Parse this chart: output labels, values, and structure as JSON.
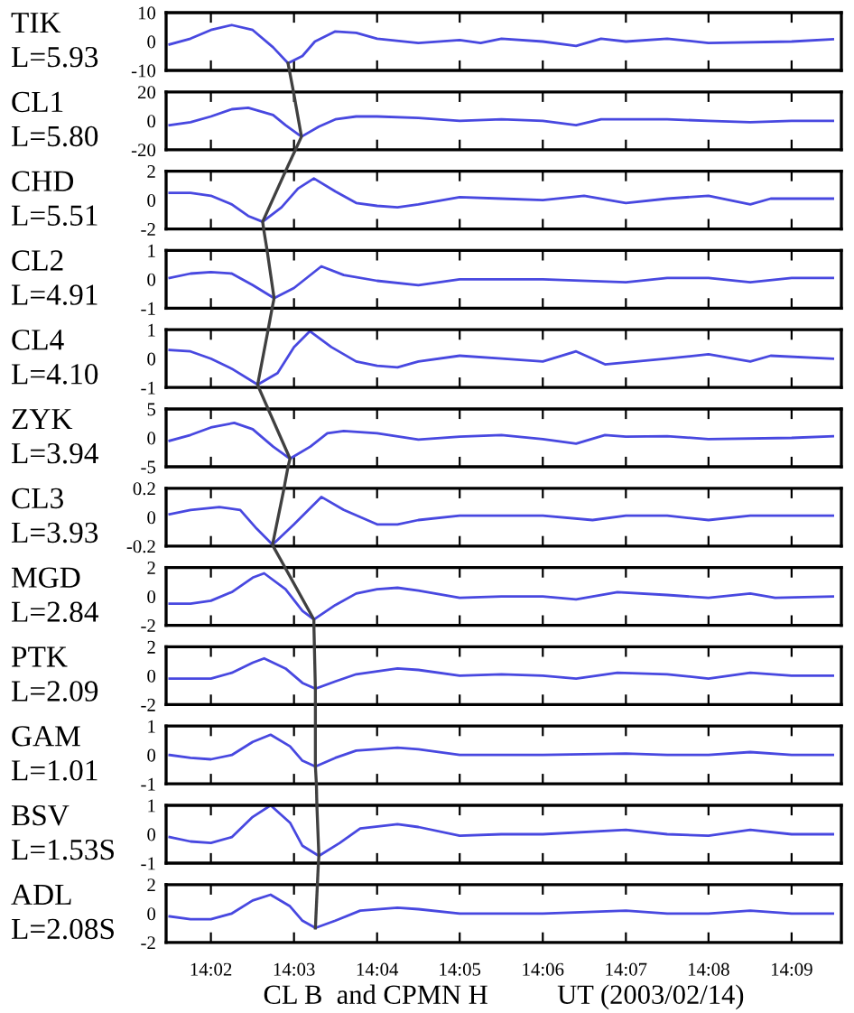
{
  "chart_data": [
    {
      "type": "line",
      "title": "TIK",
      "subtitle": "L=5.93",
      "color": "#4848e0",
      "xlim": [
        14.0243,
        14.16
      ],
      "ylim": [
        -10,
        10
      ],
      "yticks": [
        -10,
        0,
        10
      ],
      "tick_labels": "y",
      "xticks": [
        {
          "value": 14.0333,
          "label": null
        },
        {
          "value": 14.05,
          "label": null
        },
        {
          "value": 14.0667,
          "label": null
        },
        {
          "value": 14.0833,
          "label": null
        },
        {
          "value": 14.1,
          "label": null
        },
        {
          "value": 14.1167,
          "label": null
        },
        {
          "value": 14.1333,
          "label": null
        },
        {
          "value": 14.15,
          "label": null
        }
      ],
      "x": [
        14.025,
        14.0292,
        14.0333,
        14.0375,
        14.0417,
        14.0458,
        14.0488,
        14.0517,
        14.0542,
        14.0583,
        14.0625,
        14.0667,
        14.075,
        14.0833,
        14.0875,
        14.0917,
        14.1,
        14.1067,
        14.1117,
        14.1167,
        14.125,
        14.1333,
        14.15,
        14.1583
      ],
      "values": [
        -1,
        1,
        4,
        5.7,
        4,
        -2,
        -7.5,
        -5,
        0,
        3.5,
        3,
        1,
        -0.5,
        0.5,
        -0.5,
        1,
        0,
        -1.5,
        1,
        0,
        1,
        -0.5,
        0,
        0.8
      ]
    },
    {
      "type": "line",
      "title": "CL1",
      "subtitle": "L=5.80",
      "color": "#4848e0",
      "xlim": [
        14.0243,
        14.16
      ],
      "ylim": [
        -20,
        20
      ],
      "yticks": [
        -20,
        0,
        20
      ],
      "tick_labels": "y",
      "xticks": [
        {
          "value": 14.0333,
          "label": null
        },
        {
          "value": 14.05,
          "label": null
        },
        {
          "value": 14.0667,
          "label": null
        },
        {
          "value": 14.0833,
          "label": null
        },
        {
          "value": 14.1,
          "label": null
        },
        {
          "value": 14.1167,
          "label": null
        },
        {
          "value": 14.1333,
          "label": null
        },
        {
          "value": 14.15,
          "label": null
        }
      ],
      "x": [
        14.025,
        14.0292,
        14.0333,
        14.0375,
        14.0408,
        14.0458,
        14.0483,
        14.0515,
        14.055,
        14.0583,
        14.0625,
        14.0667,
        14.075,
        14.0833,
        14.0917,
        14.1,
        14.1067,
        14.1117,
        14.125,
        14.1333,
        14.1417,
        14.15,
        14.1583
      ],
      "values": [
        -3,
        -1,
        3,
        8,
        9,
        4,
        -3,
        -11,
        -4,
        1,
        3,
        3,
        2,
        0,
        1,
        0,
        -3,
        1,
        1,
        0,
        -1,
        0,
        0
      ],
      "series": [
        {
          "color": "#404040",
          "x": [
            14.0499,
            14.0515,
            14.0503
          ],
          "values": [
            20,
            -11,
            -20
          ]
        }
      ]
    },
    {
      "type": "line",
      "title": "CHD",
      "subtitle": "L=5.51",
      "color": "#4848e0",
      "xlim": [
        14.0243,
        14.16
      ],
      "ylim": [
        -2,
        2
      ],
      "yticks": [
        -2,
        0,
        2
      ],
      "tick_labels": "y",
      "xticks": [
        {
          "value": 14.0333,
          "label": null
        },
        {
          "value": 14.05,
          "label": null
        },
        {
          "value": 14.0667,
          "label": null
        },
        {
          "value": 14.0833,
          "label": null
        },
        {
          "value": 14.1,
          "label": null
        },
        {
          "value": 14.1167,
          "label": null
        },
        {
          "value": 14.1333,
          "label": null
        },
        {
          "value": 14.15,
          "label": null
        }
      ],
      "x": [
        14.025,
        14.0292,
        14.0333,
        14.0375,
        14.0408,
        14.0437,
        14.0475,
        14.0508,
        14.054,
        14.0583,
        14.0625,
        14.0667,
        14.0708,
        14.075,
        14.0833,
        14.0917,
        14.1,
        14.1083,
        14.1167,
        14.125,
        14.1333,
        14.1417,
        14.1458,
        14.1583
      ],
      "values": [
        0.5,
        0.5,
        0.3,
        -0.3,
        -1.1,
        -1.5,
        -0.5,
        0.8,
        1.5,
        0.6,
        -0.2,
        -0.4,
        -0.5,
        -0.3,
        0.2,
        0.1,
        0,
        0.3,
        -0.2,
        0.1,
        0.3,
        -0.3,
        0.1,
        0.1
      ],
      "series": [
        {
          "color": "#404040",
          "x": [
            14.0483,
            14.0437,
            14.0439
          ],
          "values": [
            2,
            -1.5,
            -2
          ]
        }
      ]
    },
    {
      "type": "line",
      "title": "CL2",
      "subtitle": "L=4.91",
      "color": "#4848e0",
      "xlim": [
        14.0243,
        14.16
      ],
      "ylim": [
        -1,
        1
      ],
      "yticks": [
        -1,
        0,
        1
      ],
      "tick_labels": "y",
      "xticks": [
        {
          "value": 14.0333,
          "label": null
        },
        {
          "value": 14.05,
          "label": null
        },
        {
          "value": 14.0667,
          "label": null
        },
        {
          "value": 14.0833,
          "label": null
        },
        {
          "value": 14.1,
          "label": null
        },
        {
          "value": 14.1167,
          "label": null
        },
        {
          "value": 14.1333,
          "label": null
        },
        {
          "value": 14.15,
          "label": null
        }
      ],
      "x": [
        14.025,
        14.0292,
        14.0333,
        14.0375,
        14.0417,
        14.046,
        14.05,
        14.0555,
        14.06,
        14.0667,
        14.075,
        14.0833,
        14.0917,
        14.1,
        14.1167,
        14.125,
        14.1333,
        14.1417,
        14.15,
        14.1583
      ],
      "values": [
        0.05,
        0.2,
        0.25,
        0.2,
        -0.2,
        -0.65,
        -0.3,
        0.45,
        0.15,
        -0.05,
        -0.2,
        0,
        0,
        0,
        -0.1,
        0.05,
        0.05,
        -0.1,
        0.05,
        0.05
      ],
      "series": [
        {
          "color": "#404040",
          "x": [
            14.0446,
            14.046,
            14.0456
          ],
          "values": [
            1,
            -0.65,
            -1
          ]
        }
      ]
    },
    {
      "type": "line",
      "title": "CL4",
      "subtitle": "L=4.10",
      "color": "#4848e0",
      "xlim": [
        14.0243,
        14.16
      ],
      "ylim": [
        -1,
        1
      ],
      "yticks": [
        -1,
        0,
        1
      ],
      "tick_labels": "y",
      "xticks": [
        {
          "value": 14.0333,
          "label": null
        },
        {
          "value": 14.05,
          "label": null
        },
        {
          "value": 14.0667,
          "label": null
        },
        {
          "value": 14.0833,
          "label": null
        },
        {
          "value": 14.1,
          "label": null
        },
        {
          "value": 14.1167,
          "label": null
        },
        {
          "value": 14.1333,
          "label": null
        },
        {
          "value": 14.15,
          "label": null
        }
      ],
      "x": [
        14.025,
        14.0292,
        14.0333,
        14.0375,
        14.0427,
        14.0467,
        14.05,
        14.0532,
        14.0575,
        14.0625,
        14.0667,
        14.0708,
        14.075,
        14.0833,
        14.0917,
        14.1,
        14.1067,
        14.1125,
        14.125,
        14.1333,
        14.1417,
        14.1458,
        14.1583
      ],
      "values": [
        0.3,
        0.25,
        0,
        -0.35,
        -0.9,
        -0.5,
        0.4,
        0.95,
        0.4,
        -0.1,
        -0.25,
        -0.3,
        -0.1,
        0.1,
        0,
        -0.1,
        0.25,
        -0.2,
        0,
        0.15,
        -0.1,
        0.1,
        0
      ],
      "series": [
        {
          "color": "#404040",
          "x": [
            14.0448,
            14.0427,
            14.0429
          ],
          "values": [
            1,
            -0.9,
            -1
          ]
        }
      ]
    },
    {
      "type": "line",
      "title": "ZYK",
      "subtitle": "L=3.94",
      "color": "#4848e0",
      "xlim": [
        14.0243,
        14.16
      ],
      "ylim": [
        -5,
        5
      ],
      "yticks": [
        -5,
        0,
        5
      ],
      "tick_labels": "y",
      "xticks": [
        {
          "value": 14.0333,
          "label": null
        },
        {
          "value": 14.05,
          "label": null
        },
        {
          "value": 14.0667,
          "label": null
        },
        {
          "value": 14.0833,
          "label": null
        },
        {
          "value": 14.1,
          "label": null
        },
        {
          "value": 14.1167,
          "label": null
        },
        {
          "value": 14.1333,
          "label": null
        },
        {
          "value": 14.15,
          "label": null
        }
      ],
      "x": [
        14.025,
        14.0292,
        14.0333,
        14.038,
        14.0417,
        14.0458,
        14.0492,
        14.0533,
        14.0567,
        14.06,
        14.0667,
        14.075,
        14.0833,
        14.0917,
        14.1,
        14.1067,
        14.1125,
        14.1167,
        14.125,
        14.1333,
        14.15,
        14.1583
      ],
      "values": [
        -0.5,
        0.5,
        1.8,
        2.6,
        1.5,
        -1.5,
        -3.6,
        -1.5,
        0.8,
        1.2,
        0.8,
        -0.3,
        0.2,
        0.5,
        -0.2,
        -1,
        0.5,
        0.2,
        0.3,
        -0.2,
        0,
        0.3
      ],
      "series": [
        {
          "color": "#404040",
          "x": [
            14.0448,
            14.0492,
            14.0488
          ],
          "values": [
            5,
            -3.6,
            -5
          ]
        }
      ]
    },
    {
      "type": "line",
      "title": "CL3",
      "subtitle": "L=3.93",
      "color": "#4848e0",
      "xlim": [
        14.0243,
        14.16
      ],
      "ylim": [
        -0.2,
        0.2
      ],
      "yticks": [
        -0.2,
        0,
        0.2
      ],
      "tick_labels": "y",
      "xticks": [
        {
          "value": 14.0333,
          "label": null
        },
        {
          "value": 14.05,
          "label": null
        },
        {
          "value": 14.0667,
          "label": null
        },
        {
          "value": 14.0833,
          "label": null
        },
        {
          "value": 14.1,
          "label": null
        },
        {
          "value": 14.1167,
          "label": null
        },
        {
          "value": 14.1333,
          "label": null
        },
        {
          "value": 14.15,
          "label": null
        }
      ],
      "x": [
        14.025,
        14.0292,
        14.035,
        14.0392,
        14.0425,
        14.0457,
        14.05,
        14.0555,
        14.06,
        14.0667,
        14.0708,
        14.075,
        14.0833,
        14.0917,
        14.1,
        14.11,
        14.1167,
        14.125,
        14.1333,
        14.1417,
        14.1583
      ],
      "values": [
        0.02,
        0.05,
        0.07,
        0.05,
        -0.08,
        -0.19,
        -0.05,
        0.14,
        0.05,
        -0.05,
        -0.05,
        -0.02,
        0.01,
        0.01,
        0.01,
        -0.02,
        0.01,
        0.01,
        -0.02,
        0.01,
        0.01
      ],
      "series": [
        {
          "color": "#404040",
          "x": [
            14.048,
            14.0457,
            14.0458
          ],
          "values": [
            0.2,
            -0.19,
            -0.2
          ]
        }
      ]
    },
    {
      "type": "line",
      "title": "MGD",
      "subtitle": "L=2.84",
      "color": "#4848e0",
      "xlim": [
        14.0243,
        14.16
      ],
      "ylim": [
        -2,
        2
      ],
      "yticks": [
        -2,
        0,
        2
      ],
      "tick_labels": "y",
      "xticks": [
        {
          "value": 14.0333,
          "label": null
        },
        {
          "value": 14.05,
          "label": null
        },
        {
          "value": 14.0667,
          "label": null
        },
        {
          "value": 14.0833,
          "label": null
        },
        {
          "value": 14.1,
          "label": null
        },
        {
          "value": 14.1167,
          "label": null
        },
        {
          "value": 14.1333,
          "label": null
        },
        {
          "value": 14.15,
          "label": null
        }
      ],
      "x": [
        14.025,
        14.0292,
        14.0333,
        14.0375,
        14.0417,
        14.044,
        14.0483,
        14.0517,
        14.054,
        14.0583,
        14.0625,
        14.0667,
        14.0708,
        14.075,
        14.0833,
        14.0917,
        14.1,
        14.1067,
        14.115,
        14.125,
        14.1333,
        14.1417,
        14.1467,
        14.1583
      ],
      "values": [
        -0.5,
        -0.5,
        -0.3,
        0.3,
        1.3,
        1.6,
        0.5,
        -1,
        -1.6,
        -0.6,
        0.2,
        0.5,
        0.6,
        0.4,
        -0.1,
        0,
        0,
        -0.2,
        0.3,
        0.1,
        -0.1,
        0.2,
        -0.1,
        0
      ],
      "series": [
        {
          "color": "#404040",
          "x": [
            14.0482,
            14.054,
            14.054
          ],
          "values": [
            2,
            -1.6,
            -2
          ]
        }
      ]
    },
    {
      "type": "line",
      "title": "PTK",
      "subtitle": "L=2.09",
      "color": "#4848e0",
      "xlim": [
        14.0243,
        14.16
      ],
      "ylim": [
        -2,
        2
      ],
      "yticks": [
        -2,
        0,
        2
      ],
      "tick_labels": "y",
      "xticks": [
        {
          "value": 14.0333,
          "label": null
        },
        {
          "value": 14.05,
          "label": null
        },
        {
          "value": 14.0667,
          "label": null
        },
        {
          "value": 14.0833,
          "label": null
        },
        {
          "value": 14.1,
          "label": null
        },
        {
          "value": 14.1167,
          "label": null
        },
        {
          "value": 14.1333,
          "label": null
        },
        {
          "value": 14.15,
          "label": null
        }
      ],
      "x": [
        14.025,
        14.0292,
        14.0333,
        14.0375,
        14.0417,
        14.044,
        14.0483,
        14.0517,
        14.0543,
        14.0583,
        14.0625,
        14.0708,
        14.075,
        14.0833,
        14.0917,
        14.1,
        14.1067,
        14.115,
        14.125,
        14.1333,
        14.1417,
        14.15,
        14.1583
      ],
      "values": [
        -0.2,
        -0.2,
        -0.2,
        0.2,
        0.9,
        1.2,
        0.5,
        -0.5,
        -0.9,
        -0.4,
        0.1,
        0.5,
        0.4,
        0,
        0.1,
        0,
        -0.2,
        0.2,
        0.1,
        -0.2,
        0.2,
        0,
        0
      ],
      "series": [
        {
          "color": "#404040",
          "x": [
            14.0541,
            14.0543,
            14.0543
          ],
          "values": [
            2,
            -0.9,
            -2
          ]
        }
      ]
    },
    {
      "type": "line",
      "title": "GAM",
      "subtitle": "L=1.01",
      "color": "#4848e0",
      "xlim": [
        14.0243,
        14.16
      ],
      "ylim": [
        -1,
        1
      ],
      "yticks": [
        -1,
        0,
        1
      ],
      "tick_labels": "y",
      "xticks": [
        {
          "value": 14.0333,
          "label": null
        },
        {
          "value": 14.05,
          "label": null
        },
        {
          "value": 14.0667,
          "label": null
        },
        {
          "value": 14.0833,
          "label": null
        },
        {
          "value": 14.1,
          "label": null
        },
        {
          "value": 14.1167,
          "label": null
        },
        {
          "value": 14.1333,
          "label": null
        },
        {
          "value": 14.15,
          "label": null
        }
      ],
      "x": [
        14.025,
        14.0292,
        14.0333,
        14.0375,
        14.0417,
        14.0453,
        14.0492,
        14.0517,
        14.0543,
        14.0583,
        14.0625,
        14.0708,
        14.075,
        14.0833,
        14.0917,
        14.1,
        14.1167,
        14.125,
        14.1333,
        14.1417,
        14.15,
        14.1583
      ],
      "values": [
        0,
        -0.1,
        -0.15,
        0,
        0.45,
        0.7,
        0.3,
        -0.2,
        -0.4,
        -0.1,
        0.15,
        0.25,
        0.2,
        0,
        0,
        0,
        0.05,
        0,
        0,
        0.1,
        0,
        0
      ],
      "series": [
        {
          "color": "#404040",
          "x": [
            14.0543,
            14.0543,
            14.0545
          ],
          "values": [
            1,
            -0.4,
            -1
          ]
        }
      ]
    },
    {
      "type": "line",
      "title": "BSV",
      "subtitle": "L=1.53S",
      "color": "#4848e0",
      "xlim": [
        14.0243,
        14.16
      ],
      "ylim": [
        -1,
        1
      ],
      "yticks": [
        -1,
        0,
        1
      ],
      "tick_labels": "y",
      "xticks": [
        {
          "value": 14.0333,
          "label": null
        },
        {
          "value": 14.05,
          "label": null
        },
        {
          "value": 14.0667,
          "label": null
        },
        {
          "value": 14.0833,
          "label": null
        },
        {
          "value": 14.1,
          "label": null
        },
        {
          "value": 14.1167,
          "label": null
        },
        {
          "value": 14.1333,
          "label": null
        },
        {
          "value": 14.15,
          "label": null
        }
      ],
      "x": [
        14.025,
        14.0292,
        14.0333,
        14.0375,
        14.0417,
        14.0453,
        14.0492,
        14.0517,
        14.055,
        14.0592,
        14.0633,
        14.0708,
        14.075,
        14.0833,
        14.0917,
        14.1,
        14.1167,
        14.125,
        14.1333,
        14.1417,
        14.15,
        14.1583
      ],
      "values": [
        -0.1,
        -0.25,
        -0.3,
        -0.1,
        0.6,
        1.0,
        0.4,
        -0.4,
        -0.75,
        -0.3,
        0.2,
        0.35,
        0.25,
        -0.05,
        0,
        0,
        0.15,
        0,
        -0.05,
        0.15,
        0,
        0
      ],
      "series": [
        {
          "color": "#404040",
          "x": [
            14.0546,
            14.055,
            14.0549
          ],
          "values": [
            1,
            -0.75,
            -1
          ]
        }
      ]
    },
    {
      "type": "line",
      "title": "ADL",
      "subtitle": "L=2.08S",
      "xlabel": "CL B  and CPMN H          UT (2003/02/14)",
      "color": "#4848e0",
      "xlim": [
        14.0243,
        14.16
      ],
      "ylim": [
        -2,
        2
      ],
      "yticks": [
        -2,
        0,
        2
      ],
      "xticks": [
        {
          "value": 14.0333,
          "label": "14:02"
        },
        {
          "value": 14.05,
          "label": "14:03"
        },
        {
          "value": 14.0667,
          "label": "14:04"
        },
        {
          "value": 14.0833,
          "label": "14:05"
        },
        {
          "value": 14.1,
          "label": "14:06"
        },
        {
          "value": 14.1167,
          "label": "14:07"
        },
        {
          "value": 14.1333,
          "label": "14:08"
        },
        {
          "value": 14.15,
          "label": "14:09"
        }
      ],
      "x": [
        14.025,
        14.0292,
        14.0333,
        14.0375,
        14.0417,
        14.0453,
        14.0492,
        14.0517,
        14.0543,
        14.0583,
        14.0633,
        14.0708,
        14.075,
        14.0833,
        14.0917,
        14.1,
        14.1167,
        14.125,
        14.1333,
        14.1417,
        14.15,
        14.1583
      ],
      "values": [
        -0.2,
        -0.4,
        -0.4,
        0,
        0.9,
        1.3,
        0.5,
        -0.5,
        -1.0,
        -0.5,
        0.2,
        0.4,
        0.3,
        0,
        0,
        0,
        0.2,
        0,
        0,
        0.2,
        0,
        0
      ],
      "series": [
        {
          "color": "#404040",
          "x": [
            14.0547,
            14.0543
          ],
          "values": [
            2,
            -1.0
          ]
        }
      ]
    }
  ]
}
